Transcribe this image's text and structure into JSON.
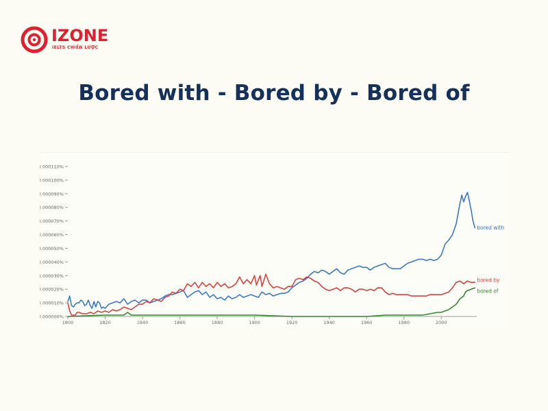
{
  "brand": {
    "name": "IZONE",
    "tagline": "IELTS CHIẾN LƯỢC",
    "color": "#e0202e"
  },
  "title": "Bored with - Bored by - Bored of",
  "chart_data": {
    "type": "line",
    "title": "",
    "xlabel": "",
    "ylabel": "",
    "xlim": [
      1800,
      2019
    ],
    "ylim": [
      0,
      0.00011
    ],
    "grid": false,
    "legend": "labels at line ends",
    "x_ticks": [
      "1800",
      "1820",
      "1840",
      "1860",
      "1880",
      "1900",
      "1920",
      "1940",
      "1960",
      "1980",
      "2000"
    ],
    "y_ticks": [
      "0.000000%",
      "0.000010%",
      "0.000020%",
      "0.000030%",
      "0.000040%",
      "0.000050%",
      "0.000060%",
      "0.000070%",
      "0.000080%",
      "0.000090%",
      "0.000100%",
      "0.000110%"
    ],
    "series": [
      {
        "name": "bored with",
        "color": "#3b78c8",
        "points": [
          [
            1800,
            1.1e-05
          ],
          [
            1801,
            1.5e-05
          ],
          [
            1802,
            8e-06
          ],
          [
            1803,
            7e-06
          ],
          [
            1804,
            9e-06
          ],
          [
            1805,
            1e-05
          ],
          [
            1806,
            1e-05
          ],
          [
            1807,
            1.2e-05
          ],
          [
            1808,
            1.1e-05
          ],
          [
            1809,
            8e-06
          ],
          [
            1810,
            9e-06
          ],
          [
            1811,
            1.2e-05
          ],
          [
            1812,
            8e-06
          ],
          [
            1813,
            6e-06
          ],
          [
            1814,
            1.1e-05
          ],
          [
            1815,
            7e-06
          ],
          [
            1816,
            1.1e-05
          ],
          [
            1817,
            1e-05
          ],
          [
            1818,
            6e-06
          ],
          [
            1819,
            7e-06
          ],
          [
            1820,
            6e-06
          ],
          [
            1822,
            9e-06
          ],
          [
            1824,
            1e-05
          ],
          [
            1826,
            1.1e-05
          ],
          [
            1828,
            1e-05
          ],
          [
            1830,
            1.3e-05
          ],
          [
            1832,
            9e-06
          ],
          [
            1834,
            1.1e-05
          ],
          [
            1836,
            1.2e-05
          ],
          [
            1838,
            1e-05
          ],
          [
            1840,
            1.2e-05
          ],
          [
            1842,
            1.2e-05
          ],
          [
            1844,
            1e-05
          ],
          [
            1846,
            1.1e-05
          ],
          [
            1848,
            1.2e-05
          ],
          [
            1850,
            1.3e-05
          ],
          [
            1852,
            1.5e-05
          ],
          [
            1854,
            1.6e-05
          ],
          [
            1856,
            1.6e-05
          ],
          [
            1858,
            1.7e-05
          ],
          [
            1860,
            1.8e-05
          ],
          [
            1862,
            1.9e-05
          ],
          [
            1864,
            1.4e-05
          ],
          [
            1866,
            1.6e-05
          ],
          [
            1868,
            1.8e-05
          ],
          [
            1870,
            1.9e-05
          ],
          [
            1872,
            1.6e-05
          ],
          [
            1874,
            1.8e-05
          ],
          [
            1876,
            1.4e-05
          ],
          [
            1878,
            1.6e-05
          ],
          [
            1880,
            1.3e-05
          ],
          [
            1882,
            1.4e-05
          ],
          [
            1884,
            1.2e-05
          ],
          [
            1886,
            1.5e-05
          ],
          [
            1888,
            1.3e-05
          ],
          [
            1890,
            1.4e-05
          ],
          [
            1892,
            1.6e-05
          ],
          [
            1894,
            1.4e-05
          ],
          [
            1896,
            1.5e-05
          ],
          [
            1898,
            1.6e-05
          ],
          [
            1900,
            1.5e-05
          ],
          [
            1902,
            1.4e-05
          ],
          [
            1904,
            1.8e-05
          ],
          [
            1906,
            1.6e-05
          ],
          [
            1908,
            1.7e-05
          ],
          [
            1910,
            1.5e-05
          ],
          [
            1912,
            1.6e-05
          ],
          [
            1914,
            1.7e-05
          ],
          [
            1916,
            1.7e-05
          ],
          [
            1918,
            1.8e-05
          ],
          [
            1920,
            2.1e-05
          ],
          [
            1922,
            2.3e-05
          ],
          [
            1924,
            2.5e-05
          ],
          [
            1926,
            2.6e-05
          ],
          [
            1928,
            2.8e-05
          ],
          [
            1930,
            3.1e-05
          ],
          [
            1932,
            3.3e-05
          ],
          [
            1934,
            3.2e-05
          ],
          [
            1936,
            3.4e-05
          ],
          [
            1938,
            3.3e-05
          ],
          [
            1940,
            3.1e-05
          ],
          [
            1942,
            3.3e-05
          ],
          [
            1944,
            3.5e-05
          ],
          [
            1946,
            3.2e-05
          ],
          [
            1948,
            3.1e-05
          ],
          [
            1950,
            3.4e-05
          ],
          [
            1952,
            3.5e-05
          ],
          [
            1954,
            3.6e-05
          ],
          [
            1956,
            3.7e-05
          ],
          [
            1958,
            3.6e-05
          ],
          [
            1960,
            3.6e-05
          ],
          [
            1962,
            3.4e-05
          ],
          [
            1964,
            3.6e-05
          ],
          [
            1966,
            3.7e-05
          ],
          [
            1968,
            3.8e-05
          ],
          [
            1970,
            3.9e-05
          ],
          [
            1972,
            3.6e-05
          ],
          [
            1974,
            3.5e-05
          ],
          [
            1976,
            3.5e-05
          ],
          [
            1978,
            3.5e-05
          ],
          [
            1980,
            3.7e-05
          ],
          [
            1982,
            3.9e-05
          ],
          [
            1984,
            4e-05
          ],
          [
            1986,
            4.1e-05
          ],
          [
            1988,
            4.2e-05
          ],
          [
            1990,
            4.2e-05
          ],
          [
            1992,
            4.1e-05
          ],
          [
            1994,
            4.2e-05
          ],
          [
            1996,
            4.1e-05
          ],
          [
            1998,
            4.2e-05
          ],
          [
            2000,
            4.5e-05
          ],
          [
            2002,
            5.3e-05
          ],
          [
            2004,
            5.6e-05
          ],
          [
            2006,
            6e-05
          ],
          [
            2008,
            6.8e-05
          ],
          [
            2010,
            8.3e-05
          ],
          [
            2011,
            8.9e-05
          ],
          [
            2012,
            8.4e-05
          ],
          [
            2013,
            8.8e-05
          ],
          [
            2014,
            9.1e-05
          ],
          [
            2015,
            8.5e-05
          ],
          [
            2016,
            7.8e-05
          ],
          [
            2017,
            7e-05
          ],
          [
            2018,
            6.5e-05
          ]
        ]
      },
      {
        "name": "bored by",
        "color": "#d8413f",
        "points": [
          [
            1800,
            1e-05
          ],
          [
            1801,
            4e-06
          ],
          [
            1802,
            1e-06
          ],
          [
            1803,
            1e-06
          ],
          [
            1804,
            1e-06
          ],
          [
            1805,
            3e-06
          ],
          [
            1806,
            3e-06
          ],
          [
            1808,
            2e-06
          ],
          [
            1810,
            2e-06
          ],
          [
            1812,
            3e-06
          ],
          [
            1814,
            2e-06
          ],
          [
            1816,
            4e-06
          ],
          [
            1818,
            3e-06
          ],
          [
            1820,
            4e-06
          ],
          [
            1822,
            3e-06
          ],
          [
            1824,
            5e-06
          ],
          [
            1826,
            4e-06
          ],
          [
            1828,
            5e-06
          ],
          [
            1830,
            7e-06
          ],
          [
            1832,
            6e-06
          ],
          [
            1834,
            5e-06
          ],
          [
            1836,
            7e-06
          ],
          [
            1838,
            9e-06
          ],
          [
            1840,
            9e-06
          ],
          [
            1842,
            1.1e-05
          ],
          [
            1844,
            1e-05
          ],
          [
            1846,
            1.3e-05
          ],
          [
            1848,
            1.2e-05
          ],
          [
            1850,
            1.1e-05
          ],
          [
            1852,
            1.4e-05
          ],
          [
            1854,
            1.5e-05
          ],
          [
            1856,
            1.8e-05
          ],
          [
            1858,
            1.7e-05
          ],
          [
            1860,
            2e-05
          ],
          [
            1862,
            1.9e-05
          ],
          [
            1864,
            2.4e-05
          ],
          [
            1866,
            2.2e-05
          ],
          [
            1868,
            2.5e-05
          ],
          [
            1870,
            2.1e-05
          ],
          [
            1872,
            2.5e-05
          ],
          [
            1874,
            2.2e-05
          ],
          [
            1876,
            2.4e-05
          ],
          [
            1878,
            2.1e-05
          ],
          [
            1880,
            2.5e-05
          ],
          [
            1882,
            2.2e-05
          ],
          [
            1884,
            2.4e-05
          ],
          [
            1886,
            2.1e-05
          ],
          [
            1888,
            2.2e-05
          ],
          [
            1890,
            2.4e-05
          ],
          [
            1892,
            2.9e-05
          ],
          [
            1894,
            2.4e-05
          ],
          [
            1896,
            2.7e-05
          ],
          [
            1898,
            2.4e-05
          ],
          [
            1900,
            3e-05
          ],
          [
            1901,
            2.3e-05
          ],
          [
            1903,
            3e-05
          ],
          [
            1904,
            2.2e-05
          ],
          [
            1906,
            3.1e-05
          ],
          [
            1908,
            2.4e-05
          ],
          [
            1910,
            2.1e-05
          ],
          [
            1912,
            2.2e-05
          ],
          [
            1914,
            2.1e-05
          ],
          [
            1916,
            2e-05
          ],
          [
            1918,
            2.2e-05
          ],
          [
            1920,
            2.2e-05
          ],
          [
            1922,
            2.7e-05
          ],
          [
            1924,
            2.8e-05
          ],
          [
            1926,
            2.7e-05
          ],
          [
            1928,
            2.9e-05
          ],
          [
            1930,
            2.8e-05
          ],
          [
            1932,
            2.6e-05
          ],
          [
            1934,
            2.5e-05
          ],
          [
            1936,
            2.2e-05
          ],
          [
            1938,
            2e-05
          ],
          [
            1940,
            1.9e-05
          ],
          [
            1942,
            2e-05
          ],
          [
            1944,
            2.1e-05
          ],
          [
            1946,
            1.9e-05
          ],
          [
            1948,
            2.1e-05
          ],
          [
            1950,
            2.1e-05
          ],
          [
            1952,
            2e-05
          ],
          [
            1954,
            1.8e-05
          ],
          [
            1956,
            2e-05
          ],
          [
            1958,
            2e-05
          ],
          [
            1960,
            1.9e-05
          ],
          [
            1962,
            2e-05
          ],
          [
            1964,
            1.9e-05
          ],
          [
            1966,
            2.1e-05
          ],
          [
            1968,
            2.1e-05
          ],
          [
            1970,
            1.8e-05
          ],
          [
            1972,
            1.6e-05
          ],
          [
            1974,
            1.7e-05
          ],
          [
            1976,
            1.6e-05
          ],
          [
            1978,
            1.6e-05
          ],
          [
            1980,
            1.6e-05
          ],
          [
            1982,
            1.6e-05
          ],
          [
            1984,
            1.5e-05
          ],
          [
            1986,
            1.5e-05
          ],
          [
            1988,
            1.5e-05
          ],
          [
            1990,
            1.5e-05
          ],
          [
            1992,
            1.5e-05
          ],
          [
            1994,
            1.6e-05
          ],
          [
            1996,
            1.6e-05
          ],
          [
            1998,
            1.6e-05
          ],
          [
            2000,
            1.6e-05
          ],
          [
            2002,
            1.7e-05
          ],
          [
            2004,
            1.8e-05
          ],
          [
            2006,
            2.1e-05
          ],
          [
            2008,
            2.5e-05
          ],
          [
            2010,
            2.6e-05
          ],
          [
            2012,
            2.4e-05
          ],
          [
            2014,
            2.6e-05
          ],
          [
            2016,
            2.5e-05
          ],
          [
            2018,
            2.5e-05
          ]
        ]
      },
      {
        "name": "bored of",
        "color": "#2f8a2b",
        "points": [
          [
            1800,
            0.0
          ],
          [
            1820,
            1e-06
          ],
          [
            1830,
            1e-06
          ],
          [
            1832,
            3e-06
          ],
          [
            1834,
            1e-06
          ],
          [
            1840,
            1e-06
          ],
          [
            1860,
            1e-06
          ],
          [
            1868,
            1e-06
          ],
          [
            1880,
            1e-06
          ],
          [
            1900,
            1e-06
          ],
          [
            1920,
            0.0
          ],
          [
            1940,
            0.0
          ],
          [
            1960,
            0.0
          ],
          [
            1970,
            1e-06
          ],
          [
            1980,
            1e-06
          ],
          [
            1985,
            1e-06
          ],
          [
            1990,
            1e-06
          ],
          [
            1994,
            2e-06
          ],
          [
            1998,
            3e-06
          ],
          [
            2000,
            3e-06
          ],
          [
            2002,
            4e-06
          ],
          [
            2004,
            5e-06
          ],
          [
            2006,
            7e-06
          ],
          [
            2008,
            9e-06
          ],
          [
            2010,
            1.3e-05
          ],
          [
            2012,
            1.5e-05
          ],
          [
            2013,
            1.8e-05
          ],
          [
            2014,
            1.9e-05
          ],
          [
            2016,
            2e-05
          ],
          [
            2018,
            2.1e-05
          ]
        ]
      }
    ]
  }
}
